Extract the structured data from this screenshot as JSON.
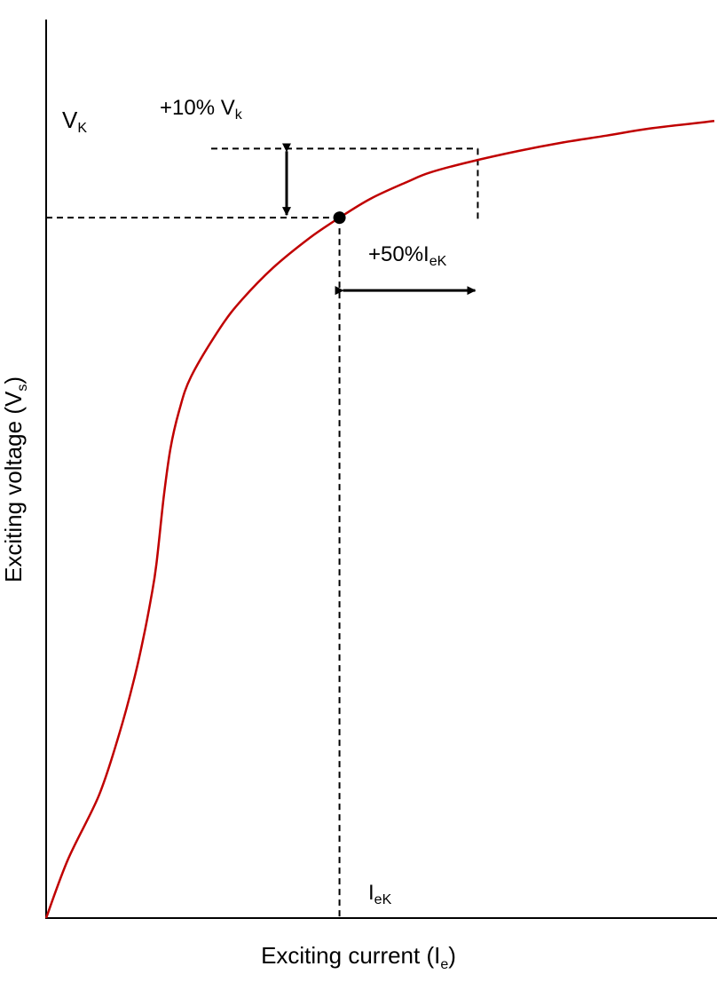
{
  "chart_data": {
    "type": "line",
    "xlabel": {
      "main": "Exciting current (I",
      "sub": "e",
      "close": ")"
    },
    "ylabel": {
      "main": "Exciting voltage (V",
      "sub": "s",
      "close": ")"
    },
    "axis_ticks": "none",
    "grid": false,
    "series": [
      {
        "color": "#c00000",
        "x": [
          0.0,
          0.033,
          0.079,
          0.109,
          0.131,
          0.146,
          0.157,
          0.165,
          0.176,
          0.186,
          0.199,
          0.217,
          0.261,
          0.293,
          0.34,
          0.395,
          0.439,
          0.486,
          0.541,
          0.575,
          0.635,
          0.707,
          0.773,
          0.839,
          0.902,
          1.0
        ],
        "y": [
          0.0,
          0.077,
          0.16,
          0.239,
          0.309,
          0.367,
          0.417,
          0.461,
          0.549,
          0.612,
          0.661,
          0.706,
          0.77,
          0.806,
          0.848,
          0.887,
          0.913,
          0.938,
          0.96,
          0.972,
          0.986,
          1.0,
          1.011,
          1.02,
          1.029,
          1.039
        ]
      }
    ],
    "knee_point": {
      "x": 0.439,
      "y": 0.913
    },
    "upper_point": {
      "x": 0.646,
      "y": 1.003
    },
    "annotations": {
      "vk": {
        "main": "V",
        "sub": "K"
      },
      "iek": {
        "main": "I",
        "sub": "eK"
      },
      "voltage_margin": {
        "main": "+10% V",
        "sub": "k"
      },
      "current_margin": {
        "main": "+50%I",
        "sub": "eK"
      }
    },
    "colors": {
      "curve": "#c00000",
      "axes": "#000000",
      "guides": "#000000",
      "background": "#ffffff"
    }
  }
}
